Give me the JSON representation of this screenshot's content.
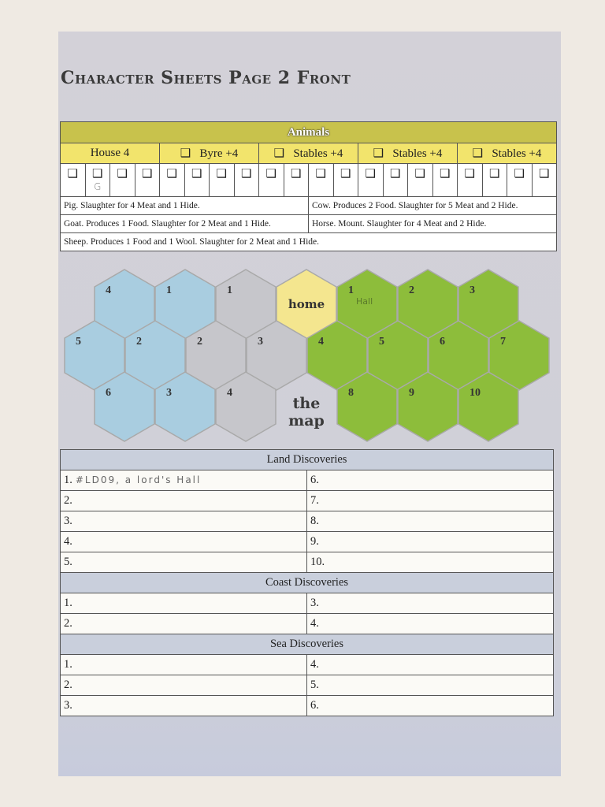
{
  "title": "Character Sheets Page 2 Front",
  "animals": {
    "header": "Animals",
    "buildings": [
      {
        "label": "House 4",
        "checkbox": false
      },
      {
        "label": "Byre +4",
        "checkbox": true
      },
      {
        "label": "Stables +4",
        "checkbox": true
      },
      {
        "label": "Stables +4",
        "checkbox": true
      },
      {
        "label": "Stables +4",
        "checkbox": true
      }
    ],
    "checkbox_glyph": "❑",
    "slots": [
      "",
      "G",
      "",
      "",
      "",
      "",
      "",
      "",
      "",
      "",
      "",
      "",
      "",
      "",
      "",
      "",
      "",
      "",
      "",
      ""
    ],
    "descriptions": [
      [
        "Pig. Slaughter for 4 Meat and 1 Hide.",
        "Cow. Produces 2 Food. Slaughter for 5 Meat and 2 Hide."
      ],
      [
        "Goat. Produces 1 Food. Slaughter for 2 Meat and 1 Hide.",
        "Horse. Mount. Slaughter for 4 Meat and 2 Hide."
      ],
      [
        "Sheep. Produces 1 Food and 1 Wool. Slaughter for 2 Meat and 1 Hide."
      ]
    ]
  },
  "map": {
    "label_home": "home",
    "label_map": "the map",
    "colors": {
      "sea": "#a9cde0",
      "coast": "#c6c6cb",
      "home": "#f4e68f",
      "land": "#8dbd3b"
    },
    "hexes": [
      {
        "n": "4",
        "t": "sea"
      },
      {
        "n": "1",
        "t": "sea"
      },
      {
        "n": "1",
        "t": "coast"
      },
      {
        "n": "home",
        "t": "home"
      },
      {
        "n": "1",
        "t": "land",
        "note": "Hall"
      },
      {
        "n": "2",
        "t": "land"
      },
      {
        "n": "3",
        "t": "land"
      },
      {
        "n": "5",
        "t": "sea"
      },
      {
        "n": "2",
        "t": "sea"
      },
      {
        "n": "2",
        "t": "coast"
      },
      {
        "n": "3",
        "t": "coast"
      },
      {
        "n": "4",
        "t": "land"
      },
      {
        "n": "5",
        "t": "land"
      },
      {
        "n": "6",
        "t": "land"
      },
      {
        "n": "7",
        "t": "land"
      },
      {
        "n": "6",
        "t": "sea"
      },
      {
        "n": "3",
        "t": "sea"
      },
      {
        "n": "4",
        "t": "coast"
      },
      {
        "n": "8",
        "t": "land"
      },
      {
        "n": "9",
        "t": "land"
      },
      {
        "n": "10",
        "t": "land"
      }
    ]
  },
  "discoveries": [
    {
      "title": "Land Discoveries",
      "rows": [
        [
          "1.",
          "6."
        ],
        [
          "2.",
          "7."
        ],
        [
          "3.",
          "8."
        ],
        [
          "4.",
          "9."
        ],
        [
          "5.",
          "10."
        ]
      ],
      "handwritten": "#LD09, a lord's Hall"
    },
    {
      "title": "Coast Discoveries",
      "rows": [
        [
          "1.",
          "3."
        ],
        [
          "2.",
          "4."
        ]
      ]
    },
    {
      "title": "Sea Discoveries",
      "rows": [
        [
          "1.",
          "4."
        ],
        [
          "2.",
          "5."
        ],
        [
          "3.",
          "6."
        ]
      ]
    }
  ]
}
